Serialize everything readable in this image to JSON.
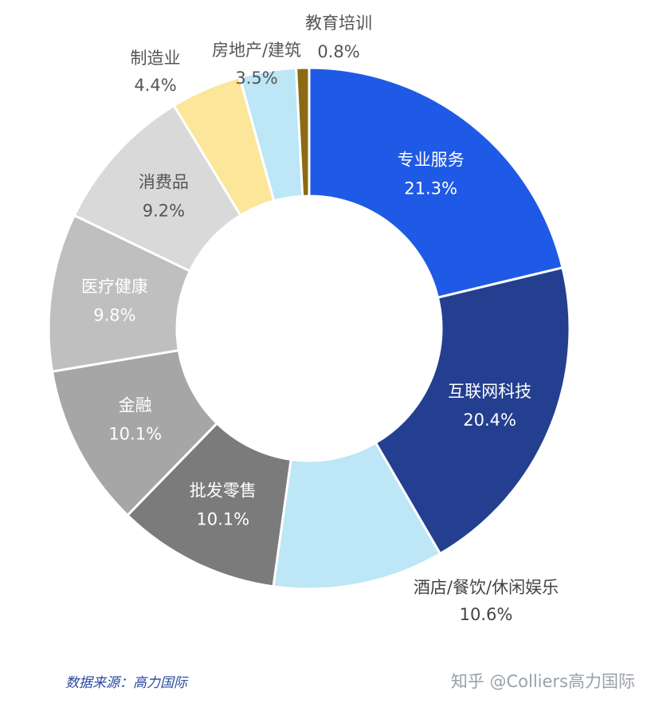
{
  "chart_data": {
    "type": "pie",
    "categories": [
      "专业服务",
      "互联网科技",
      "酒店/餐饮/休闲娱乐",
      "批发零售",
      "金融",
      "医疗健康",
      "消费品",
      "制造业",
      "房地产/建筑",
      "教育培训"
    ],
    "values": [
      21.3,
      20.4,
      10.6,
      10.1,
      10.1,
      9.8,
      9.2,
      4.4,
      3.5,
      0.8
    ],
    "value_labels": [
      "21.3%",
      "20.4%",
      "10.6%",
      "10.1%",
      "10.1%",
      "9.8%",
      "9.2%",
      "4.4%",
      "3.5%",
      "0.8%"
    ],
    "colors": [
      "#1f5ae6",
      "#243f8f",
      "#bde6f6",
      "#7b7b7b",
      "#a6a6a6",
      "#bfbfbf",
      "#d9d9d9",
      "#fbe69a",
      "#bde6f6",
      "#8a6b12"
    ],
    "label_colors": [
      "#ffffff",
      "#ffffff",
      "#444444",
      "#ffffff",
      "#ffffff",
      "#ffffff",
      "#555555",
      "#555555",
      "#555555",
      "#555555"
    ],
    "label_placement": [
      "inside",
      "inside",
      "outside",
      "inside",
      "inside",
      "inside",
      "inside",
      "outside",
      "outside",
      "outside"
    ],
    "donut": true,
    "start": "top, clockwise"
  },
  "footer": {
    "source": "数据来源：高力国际",
    "watermark": "知乎 @Colliers高力国际"
  }
}
